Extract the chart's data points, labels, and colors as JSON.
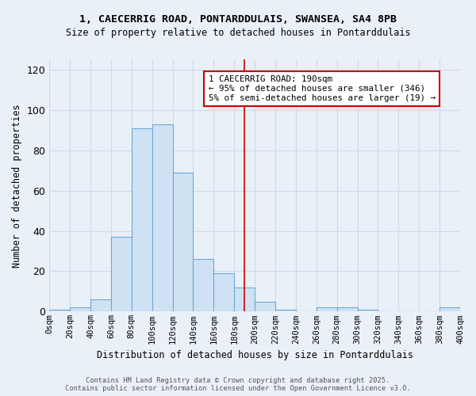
{
  "title1": "1, CAECERRIG ROAD, PONTARDDULAIS, SWANSEA, SA4 8PB",
  "title2": "Size of property relative to detached houses in Pontarddulais",
  "xlabel": "Distribution of detached houses by size in Pontarddulais",
  "ylabel": "Number of detached properties",
  "bin_edges": [
    0,
    20,
    40,
    60,
    80,
    100,
    120,
    140,
    160,
    180,
    200,
    220,
    240,
    260,
    280,
    300,
    320,
    340,
    360,
    380,
    400
  ],
  "bar_heights": [
    1,
    2,
    6,
    37,
    91,
    93,
    69,
    26,
    19,
    12,
    5,
    1,
    0,
    2,
    2,
    1,
    0,
    0,
    0,
    2
  ],
  "bar_facecolor": "#cfe2f3",
  "bar_edgecolor": "#6aa9d8",
  "grid_color": "#d0d8e8",
  "background_color": "#eaf0f8",
  "property_size": 190,
  "red_line_color": "#cc0000",
  "annotation_line1": "1 CAECERRIG ROAD: 190sqm",
  "annotation_line2": "← 95% of detached houses are smaller (346)",
  "annotation_line3": "5% of semi-detached houses are larger (19) →",
  "annotation_box_edgecolor": "#cc0000",
  "annotation_box_facecolor": "#ffffff",
  "ylim": [
    0,
    125
  ],
  "yticks": [
    0,
    20,
    40,
    60,
    80,
    100,
    120
  ],
  "footer1": "Contains HM Land Registry data © Crown copyright and database right 2025.",
  "footer2": "Contains public sector information licensed under the Open Government Licence v3.0.",
  "tick_labels": [
    "0sqm",
    "20sqm",
    "40sqm",
    "60sqm",
    "80sqm",
    "100sqm",
    "120sqm",
    "140sqm",
    "160sqm",
    "180sqm",
    "200sqm",
    "220sqm",
    "240sqm",
    "260sqm",
    "280sqm",
    "300sqm",
    "320sqm",
    "340sqm",
    "360sqm",
    "380sqm",
    "400sqm"
  ]
}
